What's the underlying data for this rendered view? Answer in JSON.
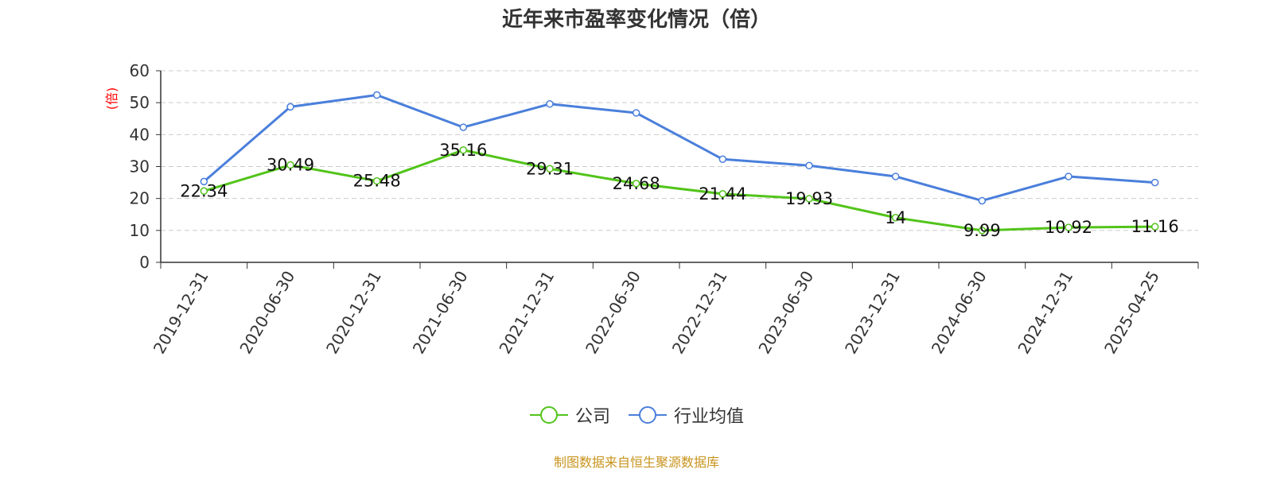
{
  "chart_data": {
    "type": "line",
    "title": "近年来市盈率变化情况（倍）",
    "ylabel": "(倍)",
    "ylim": [
      0,
      60
    ],
    "yticks": [
      0,
      10,
      20,
      30,
      40,
      50,
      60
    ],
    "grid": true,
    "legend_position": "bottom",
    "categories": [
      "2019-12-31",
      "2020-06-30",
      "2020-12-31",
      "2021-06-30",
      "2021-12-31",
      "2022-06-30",
      "2022-12-31",
      "2023-06-30",
      "2023-12-31",
      "2024-06-30",
      "2024-12-31",
      "2025-04-25"
    ],
    "series": [
      {
        "name": "公司",
        "color": "#52c41a",
        "values": [
          22.34,
          30.49,
          25.48,
          35.16,
          29.31,
          24.68,
          21.44,
          19.93,
          14,
          9.99,
          10.92,
          11.16
        ],
        "labels": [
          "22.34",
          "30.49",
          "25.48",
          "35.16",
          "29.31",
          "24.68",
          "21.44",
          "19.93",
          "14",
          "9.99",
          "10.92",
          "11.16"
        ]
      },
      {
        "name": "行业均值",
        "color": "#4a7fdb",
        "values": [
          25.3,
          48.7,
          52.4,
          42.3,
          49.6,
          46.8,
          32.3,
          30.3,
          26.9,
          19.3,
          26.9,
          25.0
        ]
      }
    ]
  },
  "source_note": "制图数据来自恒生聚源数据库",
  "colors": {
    "ylabel": "#ff0000",
    "axis": "#333333",
    "grid": "#cccccc",
    "source": "#c8941e"
  }
}
